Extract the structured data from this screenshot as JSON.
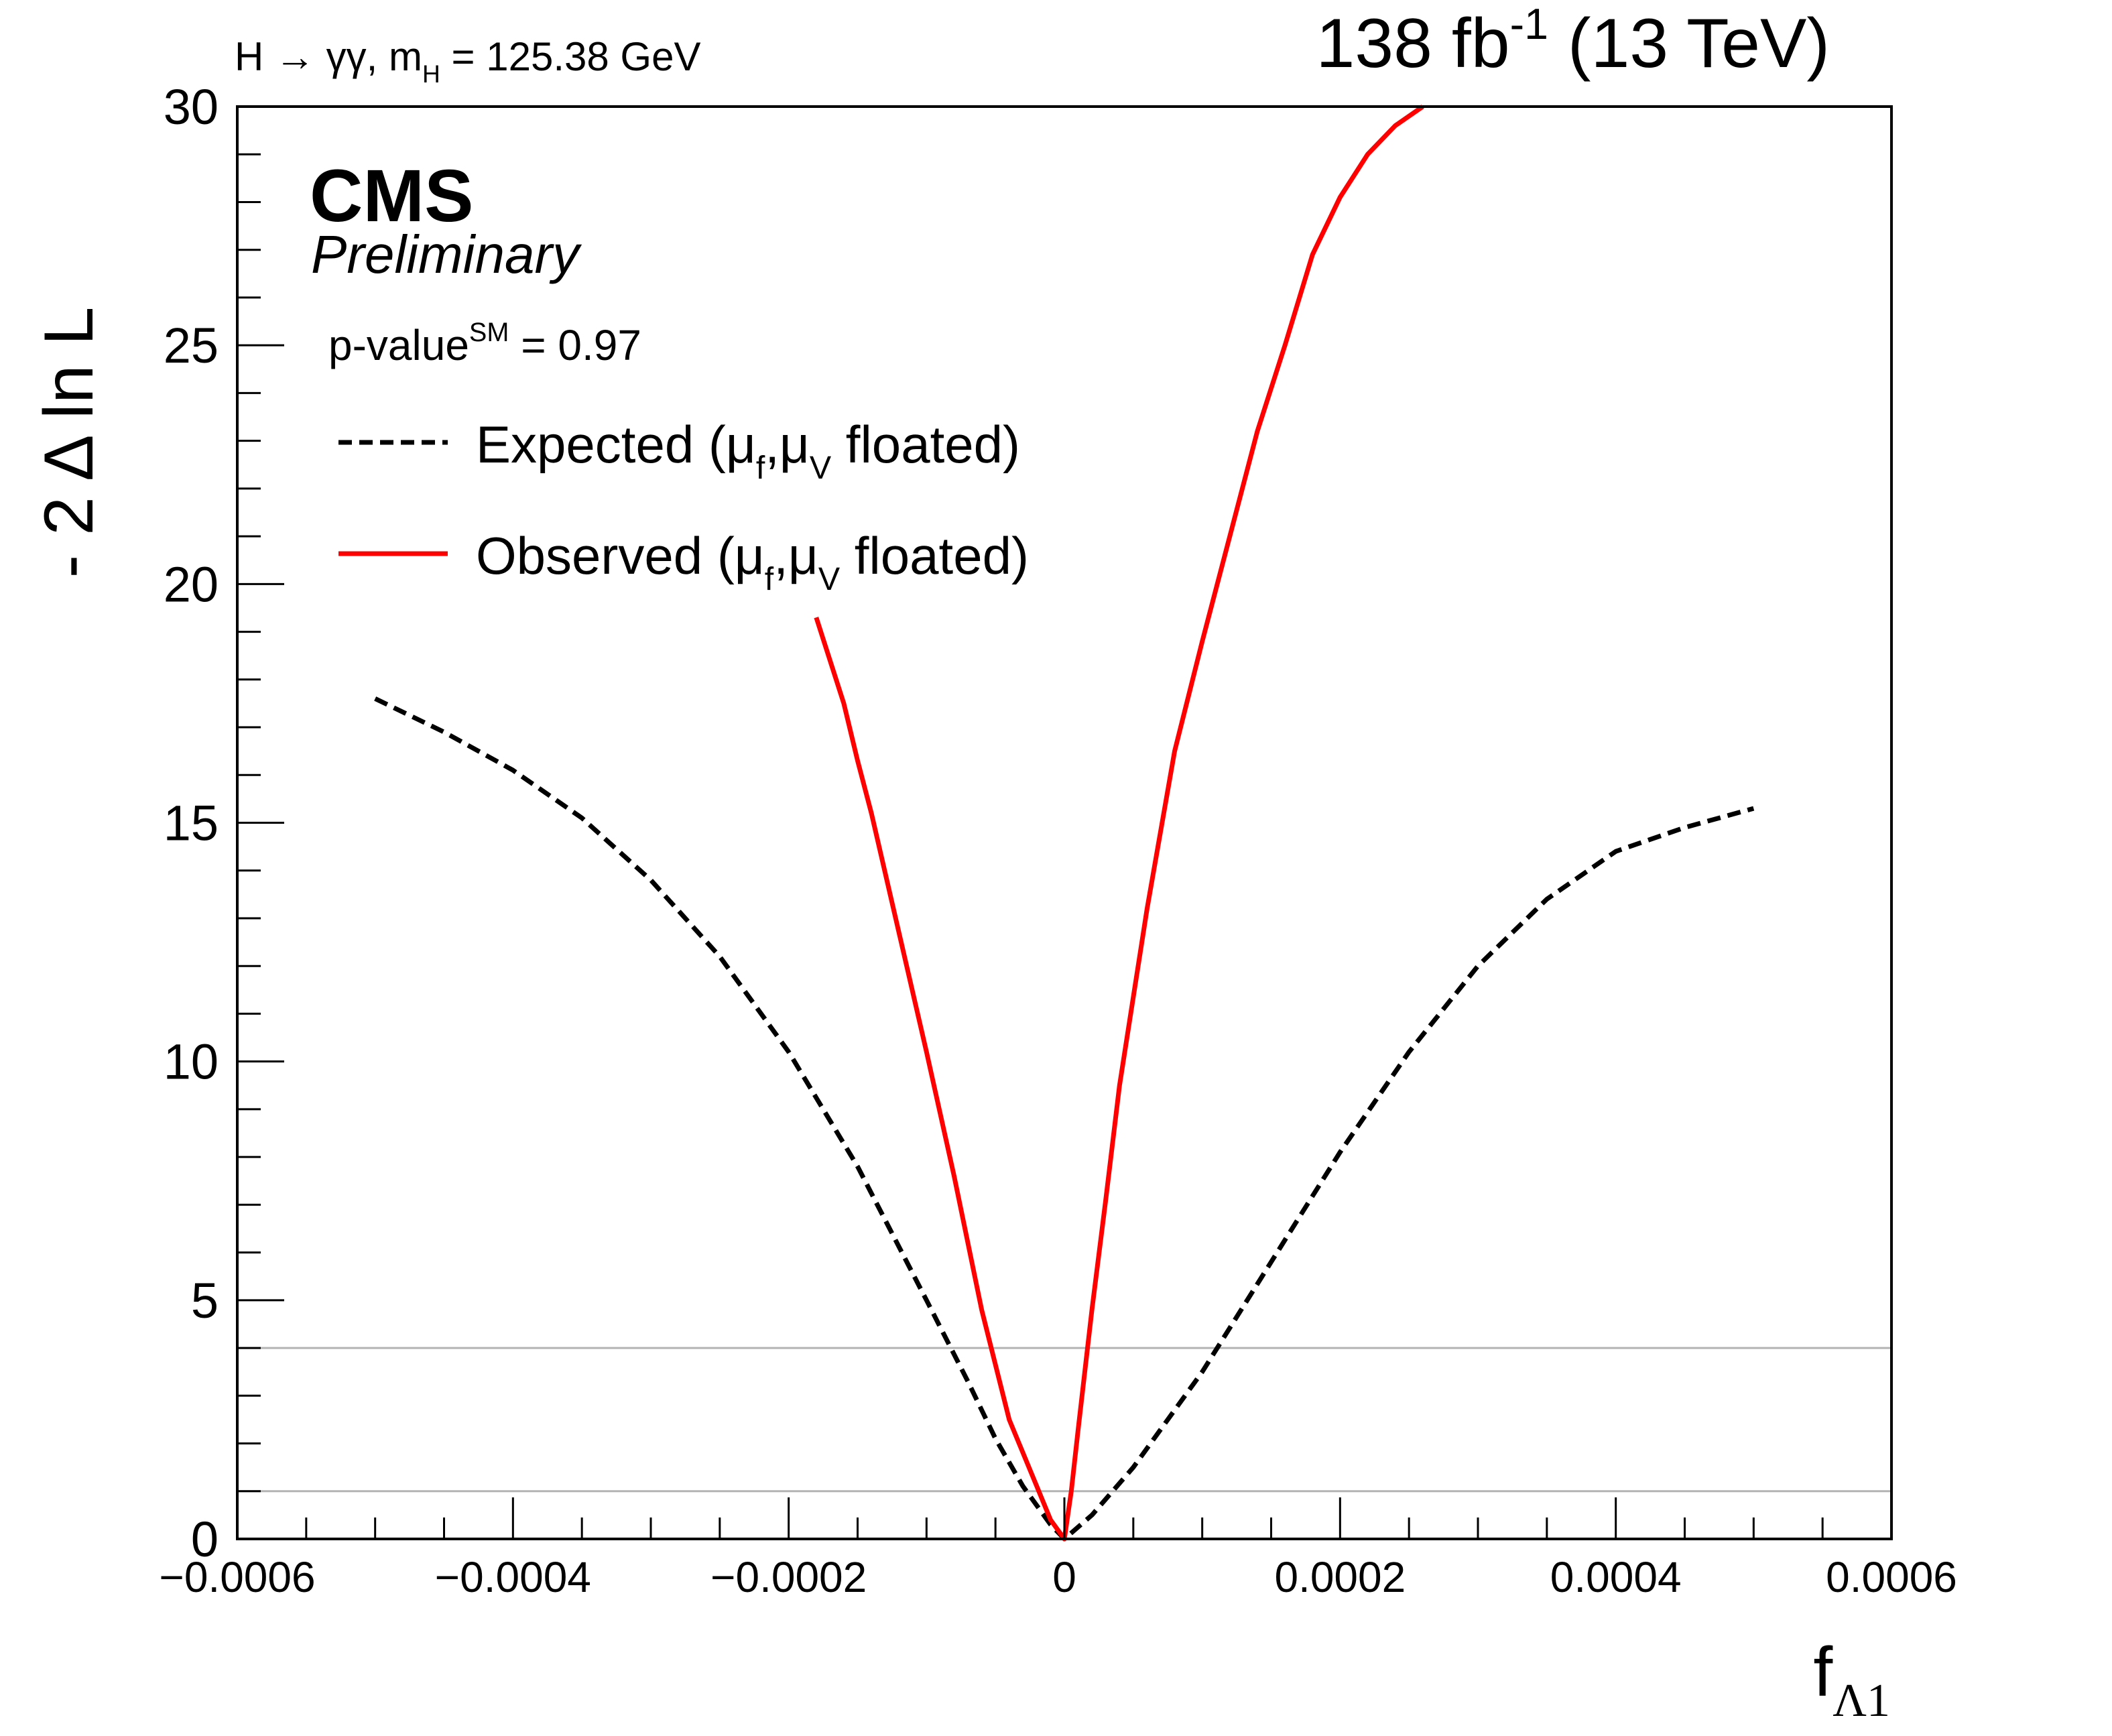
{
  "chart_data": {
    "type": "line",
    "header_left": {
      "process": "H → γγ, m",
      "mass_sub": "H",
      "mass_value": " = 125.38 GeV"
    },
    "header_right": {
      "lumi": "138 fb",
      "lumi_sup": "-1",
      "energy": " (13 TeV)"
    },
    "experiment": "CMS",
    "status": "Preliminary",
    "pvalue": {
      "text": "p-value",
      "sup": "SM",
      "value": " = 0.97"
    },
    "ylabel": "- 2 Δ ln L",
    "xlabel": {
      "main": "f",
      "sub": "Λ1"
    },
    "xlim": [
      -0.0006,
      0.0006
    ],
    "ylim": [
      0,
      30
    ],
    "xticks": [
      {
        "v": -0.0006,
        "label": "−0.0006"
      },
      {
        "v": -0.0004,
        "label": "−0.0004"
      },
      {
        "v": -0.0002,
        "label": "−0.0002"
      },
      {
        "v": 0,
        "label": "0"
      },
      {
        "v": 0.0002,
        "label": "0.0002"
      },
      {
        "v": 0.0004,
        "label": "0.0004"
      },
      {
        "v": 0.0006,
        "label": "0.0006"
      }
    ],
    "yticks": [
      {
        "v": 0,
        "label": "0"
      },
      {
        "v": 5,
        "label": "5"
      },
      {
        "v": 10,
        "label": "10"
      },
      {
        "v": 15,
        "label": "15"
      },
      {
        "v": 20,
        "label": "20"
      },
      {
        "v": 25,
        "label": "25"
      },
      {
        "v": 30,
        "label": "30"
      }
    ],
    "reference_lines": [
      1,
      4
    ],
    "colors": {
      "expected": "#000000",
      "observed": "#ff0000",
      "reference": "#b3b3b3"
    },
    "legend": [
      {
        "key": "expected",
        "pre": "Expected (μ",
        "s1": "f",
        "mid": ",μ",
        "s2": "V",
        "post": " floated)"
      },
      {
        "key": "observed",
        "pre": "Observed (μ",
        "s1": "f",
        "mid": ",μ",
        "s2": "V",
        "post": " floated)"
      }
    ],
    "series": [
      {
        "name": "Expected",
        "key": "expected",
        "style": "dashed",
        "x": [
          -0.0005,
          -0.00045,
          -0.0004,
          -0.00035,
          -0.0003,
          -0.00025,
          -0.0002,
          -0.00015,
          -0.0001,
          -7e-05,
          -5e-05,
          -3e-05,
          -1e-05,
          0,
          2e-05,
          5e-05,
          0.0001,
          0.00015,
          0.0002,
          0.00025,
          0.0003,
          0.00035,
          0.0004,
          0.00045,
          0.0005
        ],
        "y": [
          17.6,
          16.9,
          16.1,
          15.1,
          13.8,
          12.2,
          10.2,
          7.8,
          5.0,
          3.3,
          2.1,
          1.1,
          0.3,
          0,
          0.5,
          1.5,
          3.5,
          5.8,
          8.1,
          10.2,
          12.0,
          13.4,
          14.4,
          14.9,
          15.3
        ]
      },
      {
        "name": "Observed",
        "key": "observed",
        "style": "solid",
        "x": [
          -0.00018,
          -0.00016,
          -0.00015,
          -0.00014,
          -0.00012,
          -0.0001,
          -8e-05,
          -6e-05,
          -4e-05,
          -2e-05,
          -1e-05,
          0,
          5e-06,
          1e-05,
          2e-05,
          3e-05,
          4e-05,
          6e-05,
          8e-05,
          0.0001,
          0.00012,
          0.00014,
          0.00016,
          0.00018,
          0.0002,
          0.00022,
          0.00024,
          0.00026
        ],
        "y": [
          19.3,
          17.5,
          16.3,
          15.2,
          12.7,
          10.2,
          7.6,
          4.8,
          2.5,
          1.1,
          0.4,
          0,
          1.0,
          2.3,
          4.8,
          7.1,
          9.5,
          13.2,
          16.5,
          18.8,
          21.0,
          23.2,
          25.0,
          26.9,
          28.1,
          29.0,
          29.6,
          30.0
        ]
      }
    ]
  }
}
